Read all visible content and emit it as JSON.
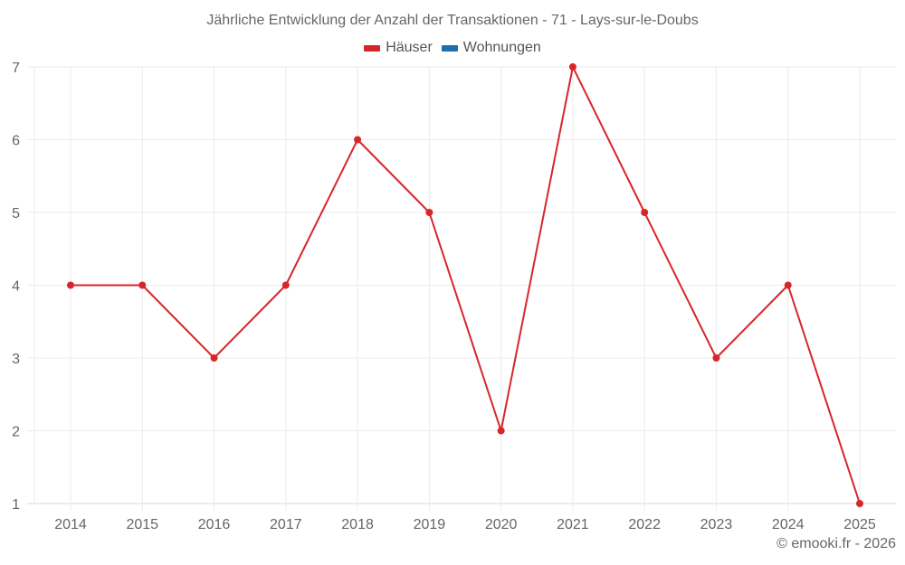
{
  "title": "Jährliche Entwicklung der Anzahl der Transaktionen - 71 - Lays-sur-le-Doubs",
  "legend": [
    {
      "label": "Häuser",
      "color": "#d7262b"
    },
    {
      "label": "Wohnungen",
      "color": "#1f6fa8"
    }
  ],
  "credit": "© emooki.fr - 2026",
  "colors": {
    "grid": "#ebebeb",
    "axis": "#d9d9d9",
    "houses": "#d7262b",
    "apartments": "#1f6fa8"
  },
  "chart_data": {
    "type": "line",
    "title": "Jährliche Entwicklung der Anzahl der Transaktionen - 71 - Lays-sur-le-Doubs",
    "xlabel": "",
    "ylabel": "",
    "categories": [
      "2014",
      "2015",
      "2016",
      "2017",
      "2018",
      "2019",
      "2020",
      "2021",
      "2022",
      "2023",
      "2024",
      "2025"
    ],
    "series": [
      {
        "name": "Häuser",
        "values": [
          4,
          4,
          3,
          4,
          6,
          5,
          2,
          7,
          5,
          3,
          4,
          1
        ]
      },
      {
        "name": "Wohnungen",
        "values": []
      }
    ],
    "yticks": [
      1,
      2,
      3,
      4,
      5,
      6,
      7
    ],
    "ylim": [
      1,
      7
    ],
    "grid": true,
    "legend_position": "top"
  }
}
